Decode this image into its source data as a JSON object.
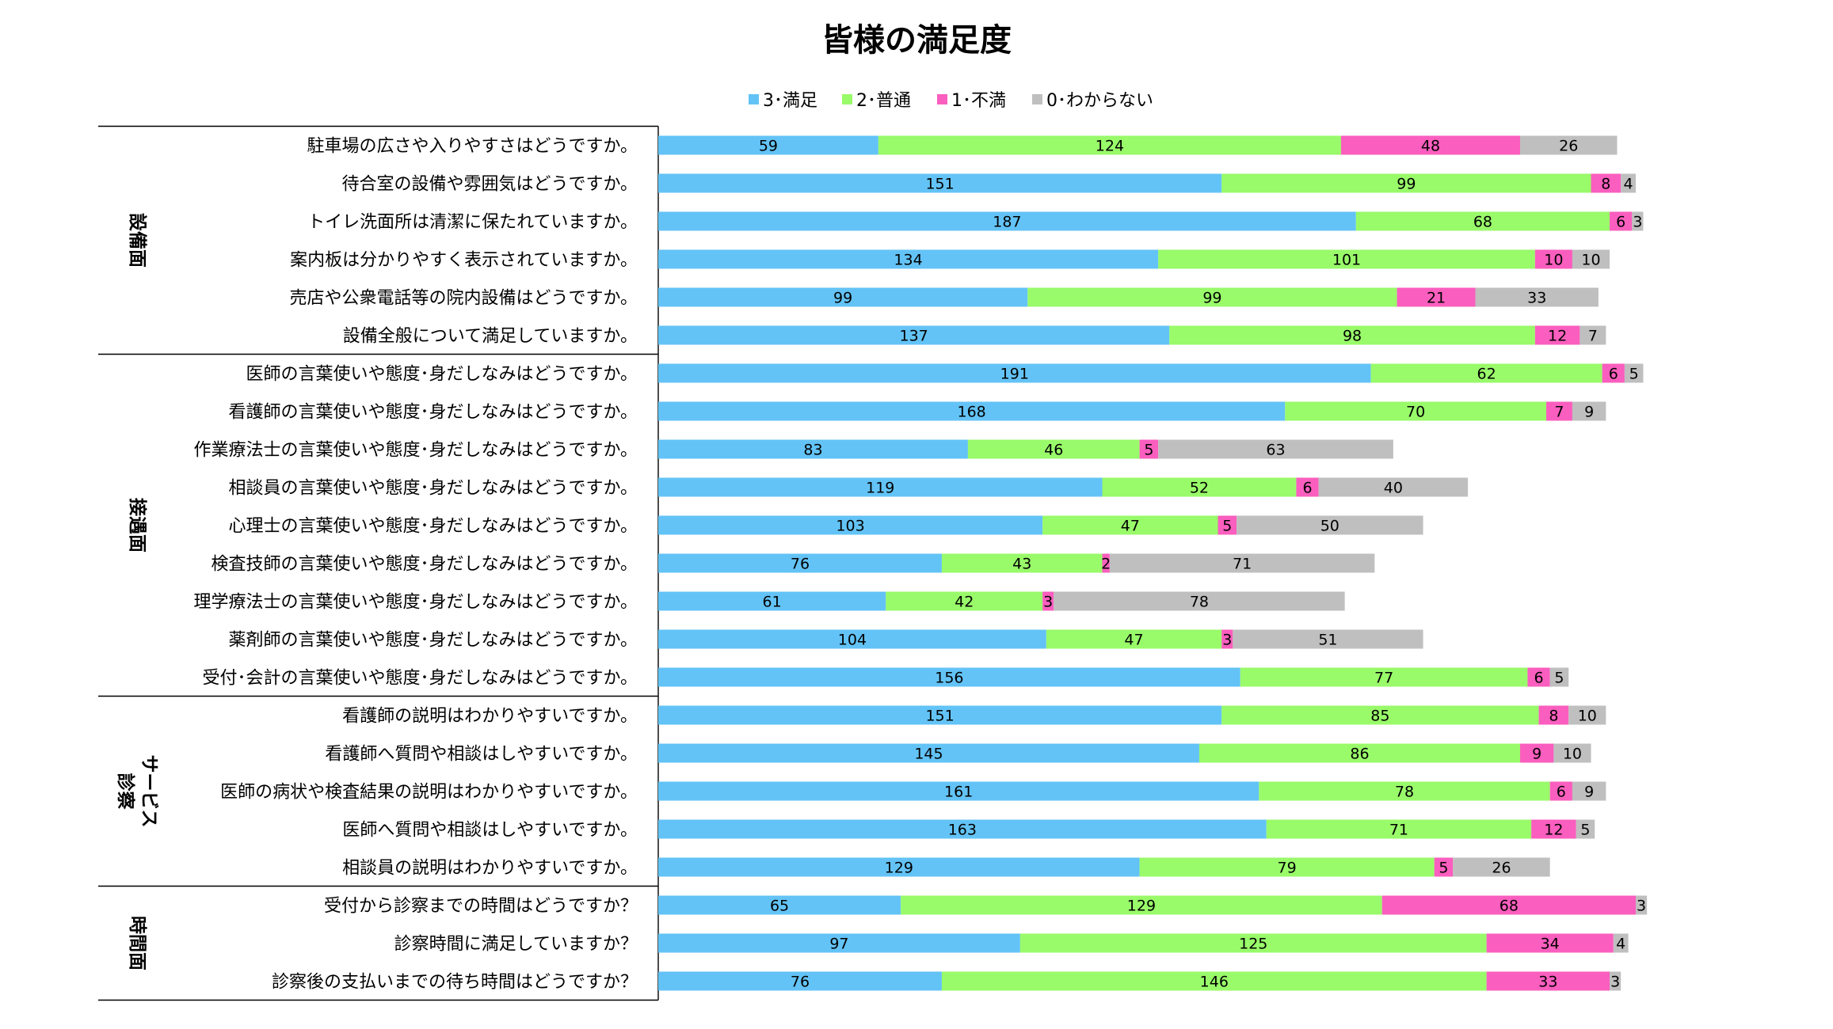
{
  "chart_data": {
    "type": "bar",
    "orientation": "horizontal",
    "stacked": true,
    "title": "皆様の満足度",
    "legend_position": "top",
    "grid": false,
    "colors": {
      "3": "#63C3F6",
      "2": "#99FA6A",
      "1": "#FA5EBE",
      "0": "#BFBFBF"
    },
    "series": [
      {
        "name": "3･満足",
        "key": "3",
        "values": [
          59,
          151,
          187,
          134,
          99,
          137,
          191,
          168,
          83,
          119,
          103,
          76,
          61,
          104,
          156,
          151,
          145,
          161,
          163,
          129,
          65,
          97,
          76
        ]
      },
      {
        "name": "2･普通",
        "key": "2",
        "values": [
          124,
          99,
          68,
          101,
          99,
          98,
          62,
          70,
          46,
          52,
          47,
          43,
          42,
          47,
          77,
          85,
          86,
          78,
          71,
          79,
          129,
          125,
          146
        ]
      },
      {
        "name": "1･不満",
        "key": "1",
        "values": [
          48,
          8,
          6,
          10,
          21,
          12,
          6,
          7,
          5,
          6,
          5,
          2,
          3,
          3,
          6,
          8,
          9,
          6,
          12,
          5,
          68,
          34,
          33
        ]
      },
      {
        "name": "0･わからない",
        "key": "0",
        "values": [
          26,
          4,
          3,
          10,
          33,
          7,
          5,
          9,
          63,
          40,
          50,
          71,
          78,
          51,
          5,
          10,
          10,
          9,
          5,
          26,
          3,
          4,
          3
        ]
      }
    ],
    "categories": [
      "駐車場の広さや入りやすさはどうですか。",
      "待合室の設備や雰囲気はどうですか。",
      "トイレ洗面所は清潔に保たれていますか。",
      "案内板は分かりやすく表示されていますか。",
      "売店や公衆電話等の院内設備はどうですか。",
      "設備全般について満足していますか。",
      "医師の言葉使いや態度･身だしなみはどうですか。",
      "看護師の言葉使いや態度･身だしなみはどうですか。",
      "作業療法士の言葉使いや態度･身だしなみはどうですか。",
      "相談員の言葉使いや態度･身だしなみはどうですか。",
      "心理士の言葉使いや態度･身だしなみはどうですか。",
      "検査技師の言葉使いや態度･身だしなみはどうですか。",
      "理学療法士の言葉使いや態度･身だしなみはどうですか。",
      "薬剤師の言葉使いや態度･身だしなみはどうですか。",
      "受付･会計の言葉使いや態度･身だしなみはどうですか。",
      "看護師の説明はわかりやすいですか。",
      "看護師へ質問や相談はしやすいですか。",
      "医師の病状や検査結果の説明はわかりやすいですか。",
      "医師へ質問や相談はしやすいですか。",
      "相談員の説明はわかりやすいですか。",
      "受付から診察までの時間はどうですか？",
      "診察時間に満足していますか？",
      "診察後の支払いまでの待ち時間はどうですか？"
    ],
    "groups": [
      {
        "lines": [
          "設備面"
        ],
        "start": 0,
        "end": 5
      },
      {
        "lines": [
          "接遇面"
        ],
        "start": 6,
        "end": 14
      },
      {
        "lines": [
          "診察",
          "サービス"
        ],
        "start": 15,
        "end": 19
      },
      {
        "lines": [
          "時間面"
        ],
        "start": 20,
        "end": 22
      }
    ]
  }
}
